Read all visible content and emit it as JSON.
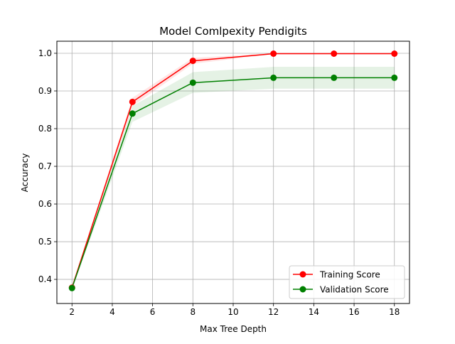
{
  "chart_data": {
    "type": "line",
    "title": "Model Comlpexity Pendigits",
    "xlabel": "Max Tree Depth",
    "ylabel": "Accuracy",
    "x": [
      2,
      5,
      8,
      12,
      15,
      18
    ],
    "xlim": [
      1.25,
      18.75
    ],
    "ylim": [
      0.336,
      1.032
    ],
    "xticks": [
      2,
      4,
      6,
      8,
      10,
      12,
      14,
      16,
      18
    ],
    "yticks": [
      0.4,
      0.5,
      0.6,
      0.7,
      0.8,
      0.9,
      1.0
    ],
    "ytick_labels": [
      "0.4",
      "0.5",
      "0.6",
      "0.7",
      "0.8",
      "0.9",
      "1.0"
    ],
    "grid": true,
    "legend_position": "lower-right",
    "series": [
      {
        "name": "Training Score",
        "color": "#ff0000",
        "values": [
          0.378,
          0.871,
          0.98,
          0.999,
          0.999,
          0.999
        ],
        "band_lower": [
          0.375,
          0.86,
          0.972,
          0.998,
          0.998,
          0.998
        ],
        "band_upper": [
          0.381,
          0.882,
          0.988,
          1.0,
          1.0,
          1.0
        ]
      },
      {
        "name": "Validation Score",
        "color": "#008000",
        "values": [
          0.377,
          0.84,
          0.922,
          0.935,
          0.935,
          0.935
        ],
        "band_lower": [
          0.372,
          0.818,
          0.895,
          0.906,
          0.906,
          0.906
        ],
        "band_upper": [
          0.382,
          0.86,
          0.95,
          0.964,
          0.964,
          0.964
        ]
      }
    ]
  }
}
